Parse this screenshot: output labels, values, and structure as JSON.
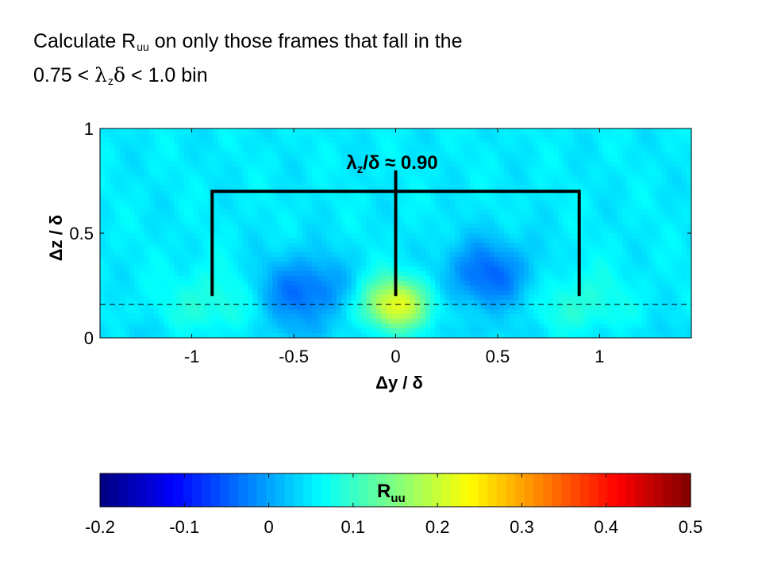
{
  "title": {
    "line1_before": "Calculate R",
    "line1_sub": "uu",
    "line1_after": " on only those frames that fall in the",
    "line2_before": "0.75 < ",
    "line2_lambda": "λ",
    "line2_sub": "z",
    "line2_delta": "δ",
    "line2_after": " < 1.0 bin"
  },
  "chart_data": {
    "type": "heatmap",
    "field": "R_uu",
    "x": {
      "label": "Δy / δ",
      "ticks": [
        -1,
        -0.5,
        0,
        0.5,
        1
      ],
      "tick_labels": [
        "-1",
        "-0.5",
        "0",
        "0.5",
        "1"
      ],
      "range": [
        -1.45,
        1.45
      ]
    },
    "y": {
      "label": "Δz / δ",
      "ticks": [
        0,
        0.5,
        1
      ],
      "tick_labels": [
        "0",
        "0.5",
        "1"
      ],
      "range": [
        0,
        1.0
      ]
    },
    "reference_line": {
      "style": "dashed",
      "z": 0.16
    },
    "peaks": [
      {
        "dy": 0.0,
        "dz": 0.16,
        "value": 0.22,
        "kind": "central peak"
      },
      {
        "dy": -0.45,
        "dz": 0.22,
        "value": -0.04,
        "kind": "negative lobe"
      },
      {
        "dy": 0.45,
        "dz": 0.3,
        "value": -0.04,
        "kind": "negative lobe"
      },
      {
        "dy": -0.9,
        "dz": 0.16,
        "value": 0.09,
        "kind": "secondary positive"
      },
      {
        "dy": 0.9,
        "dz": 0.16,
        "value": 0.09,
        "kind": "secondary positive"
      }
    ],
    "background_value": 0.05,
    "annotation": {
      "lambda": "λ",
      "sub": "z",
      "rest": "/δ ≈ 0.90",
      "bracket_x": [
        -0.9,
        0,
        0.9
      ],
      "bracket_top_z": 0.7,
      "bracket_bottom_z": 0.2,
      "center_top_z": 0.8
    },
    "colorbar": {
      "label": "R",
      "label_sub": "uu",
      "range": [
        -0.2,
        0.5
      ],
      "ticks": [
        -0.2,
        -0.1,
        0,
        0.1,
        0.2,
        0.3,
        0.4,
        0.5
      ],
      "tick_labels": [
        "-0.2",
        "-0.1",
        "0",
        "0.1",
        "0.2",
        "0.3",
        "0.4",
        "0.5"
      ],
      "colormap": "jet",
      "steps": 64
    }
  }
}
